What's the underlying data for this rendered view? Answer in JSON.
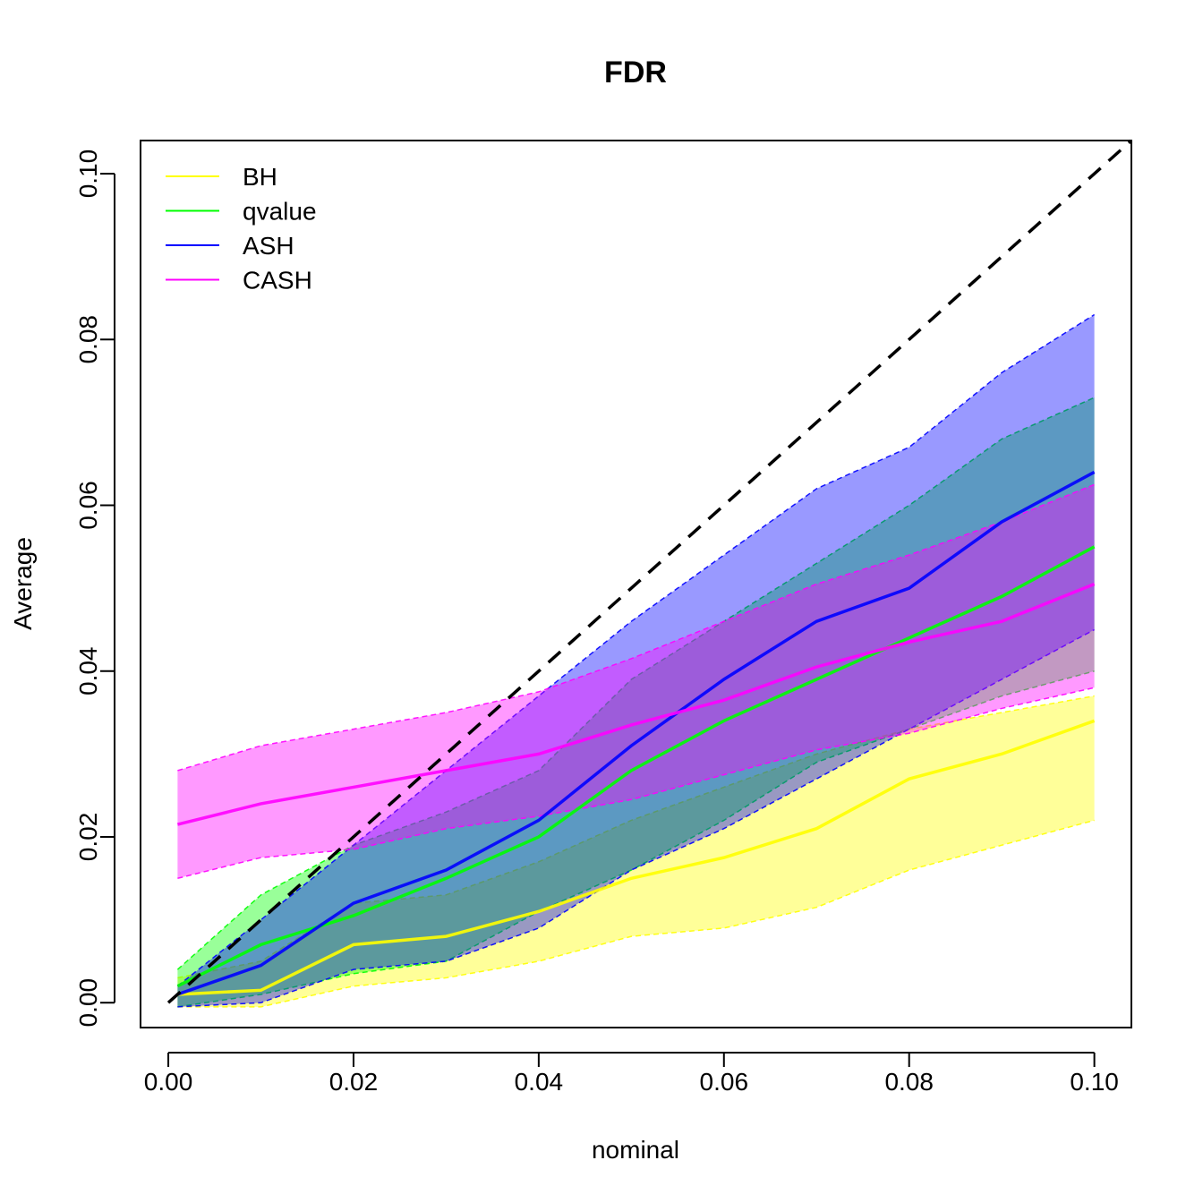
{
  "chart_data": {
    "type": "line",
    "title": "FDR",
    "xlabel": "nominal",
    "ylabel": "Average",
    "xlim": [
      -0.003,
      0.104
    ],
    "ylim": [
      -0.003,
      0.104
    ],
    "x_ticks": [
      "0.00",
      "0.02",
      "0.04",
      "0.06",
      "0.08",
      "0.10"
    ],
    "y_ticks": [
      "0.00",
      "0.02",
      "0.04",
      "0.06",
      "0.08",
      "0.10"
    ],
    "x_tick_values": [
      0,
      0.02,
      0.04,
      0.06,
      0.08,
      0.1
    ],
    "y_tick_values": [
      0,
      0.02,
      0.04,
      0.06,
      0.08,
      0.1
    ],
    "grid": false,
    "legend_position": "top-left",
    "reference_line": {
      "style": "dashed",
      "color": "#000000",
      "from": [
        0,
        0
      ],
      "to": [
        0.104,
        0.104
      ]
    },
    "series": [
      {
        "name": "BH",
        "color": "#ffff00",
        "band_color": "#ffff00",
        "x": [
          0.001,
          0.01,
          0.02,
          0.03,
          0.04,
          0.05,
          0.06,
          0.07,
          0.08,
          0.09,
          0.1
        ],
        "mean": [
          0.001,
          0.0015,
          0.007,
          0.008,
          0.011,
          0.015,
          0.0175,
          0.021,
          0.027,
          0.03,
          0.034
        ],
        "lower": [
          -0.0005,
          -0.0005,
          0.002,
          0.003,
          0.005,
          0.008,
          0.009,
          0.0115,
          0.016,
          0.019,
          0.022
        ],
        "upper": [
          0.003,
          0.005,
          0.012,
          0.013,
          0.017,
          0.022,
          0.026,
          0.03,
          0.033,
          0.035,
          0.037
        ]
      },
      {
        "name": "qvalue",
        "color": "#00ff00",
        "band_color": "#00ff00",
        "x": [
          0.001,
          0.01,
          0.02,
          0.03,
          0.04,
          0.05,
          0.06,
          0.07,
          0.08,
          0.09,
          0.1
        ],
        "mean": [
          0.002,
          0.007,
          0.0105,
          0.015,
          0.02,
          0.028,
          0.034,
          0.039,
          0.044,
          0.049,
          0.055
        ],
        "lower": [
          -0.0005,
          0.001,
          0.0035,
          0.005,
          0.011,
          0.016,
          0.022,
          0.029,
          0.033,
          0.037,
          0.04
        ],
        "upper": [
          0.004,
          0.013,
          0.019,
          0.023,
          0.028,
          0.039,
          0.046,
          0.053,
          0.06,
          0.068,
          0.073
        ]
      },
      {
        "name": "ASH",
        "color": "#0000ff",
        "band_color": "#0000ff",
        "x": [
          0.001,
          0.01,
          0.02,
          0.03,
          0.04,
          0.05,
          0.06,
          0.07,
          0.08,
          0.09,
          0.1
        ],
        "mean": [
          0.001,
          0.0045,
          0.012,
          0.016,
          0.022,
          0.031,
          0.039,
          0.046,
          0.05,
          0.058,
          0.064
        ],
        "lower": [
          -0.0005,
          0.0,
          0.004,
          0.005,
          0.009,
          0.016,
          0.021,
          0.027,
          0.033,
          0.039,
          0.045
        ],
        "upper": [
          0.002,
          0.01,
          0.019,
          0.028,
          0.037,
          0.046,
          0.054,
          0.062,
          0.067,
          0.076,
          0.083
        ]
      },
      {
        "name": "CASH",
        "color": "#ff00ff",
        "band_color": "#ff00ff",
        "x": [
          0.001,
          0.01,
          0.02,
          0.03,
          0.04,
          0.05,
          0.06,
          0.07,
          0.08,
          0.09,
          0.1
        ],
        "mean": [
          0.0215,
          0.024,
          0.026,
          0.028,
          0.03,
          0.0335,
          0.0365,
          0.0405,
          0.0435,
          0.046,
          0.0505
        ],
        "lower": [
          0.015,
          0.0175,
          0.0185,
          0.021,
          0.0225,
          0.0245,
          0.0275,
          0.0305,
          0.0325,
          0.0355,
          0.038
        ],
        "upper": [
          0.028,
          0.031,
          0.033,
          0.035,
          0.0375,
          0.0415,
          0.046,
          0.0505,
          0.054,
          0.058,
          0.0625
        ]
      }
    ]
  }
}
